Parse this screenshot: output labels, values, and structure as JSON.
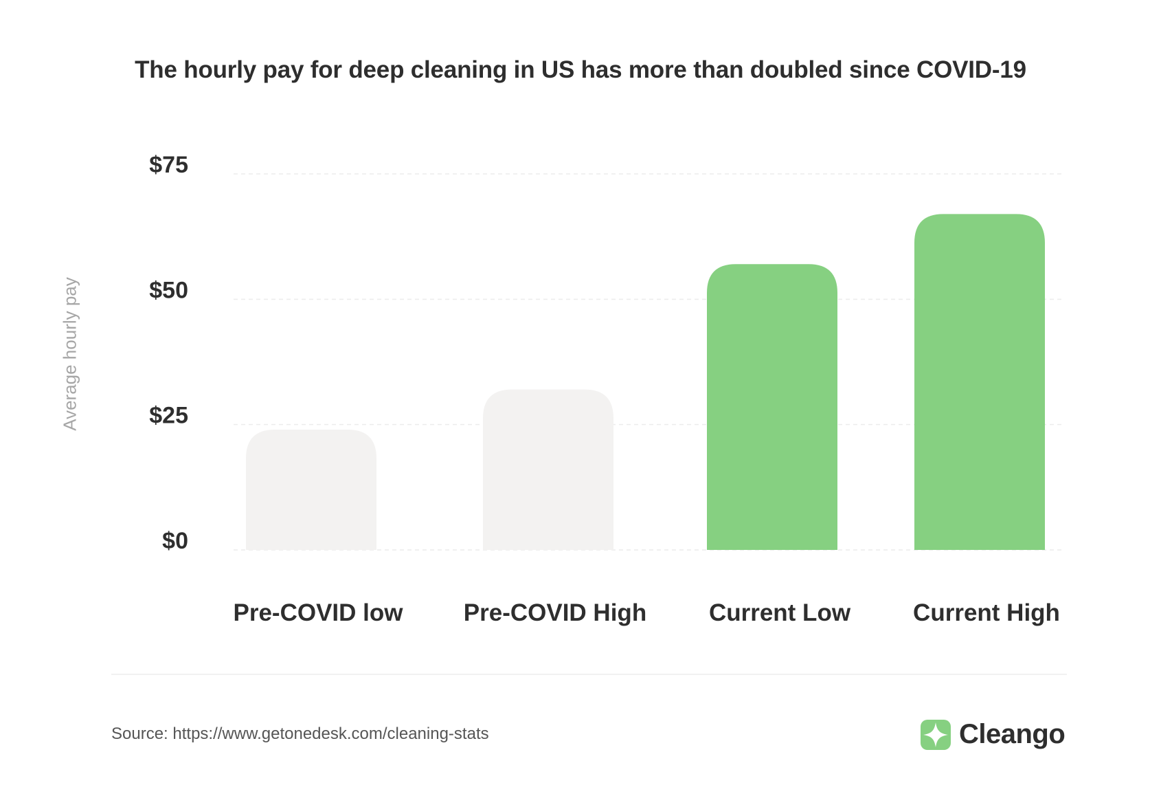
{
  "chart_data": {
    "type": "bar",
    "title": "The hourly pay for deep cleaning in US has more than doubled since COVID-19",
    "ylabel": "Average hourly pay",
    "xlabel": "",
    "categories": [
      "Pre-COVID low",
      "Pre-COVID High",
      "Current Low",
      "Current High"
    ],
    "values": [
      24,
      32,
      57,
      67
    ],
    "bar_colors": [
      "#f3f2f1",
      "#f3f2f1",
      "#86d081",
      "#86d081"
    ],
    "ylim": [
      0,
      75
    ],
    "yticks": [
      0,
      25,
      50,
      75
    ],
    "ytick_labels": [
      "$0",
      "$25",
      "$50",
      "$75"
    ],
    "grid": true,
    "legend": "none"
  },
  "footer": {
    "source": "Source: https://www.getonedesk.com/cleaning-stats"
  },
  "brand": {
    "name": "Cleango",
    "logo_icon": "cleango-logo-icon",
    "accent_color": "#86d081"
  }
}
